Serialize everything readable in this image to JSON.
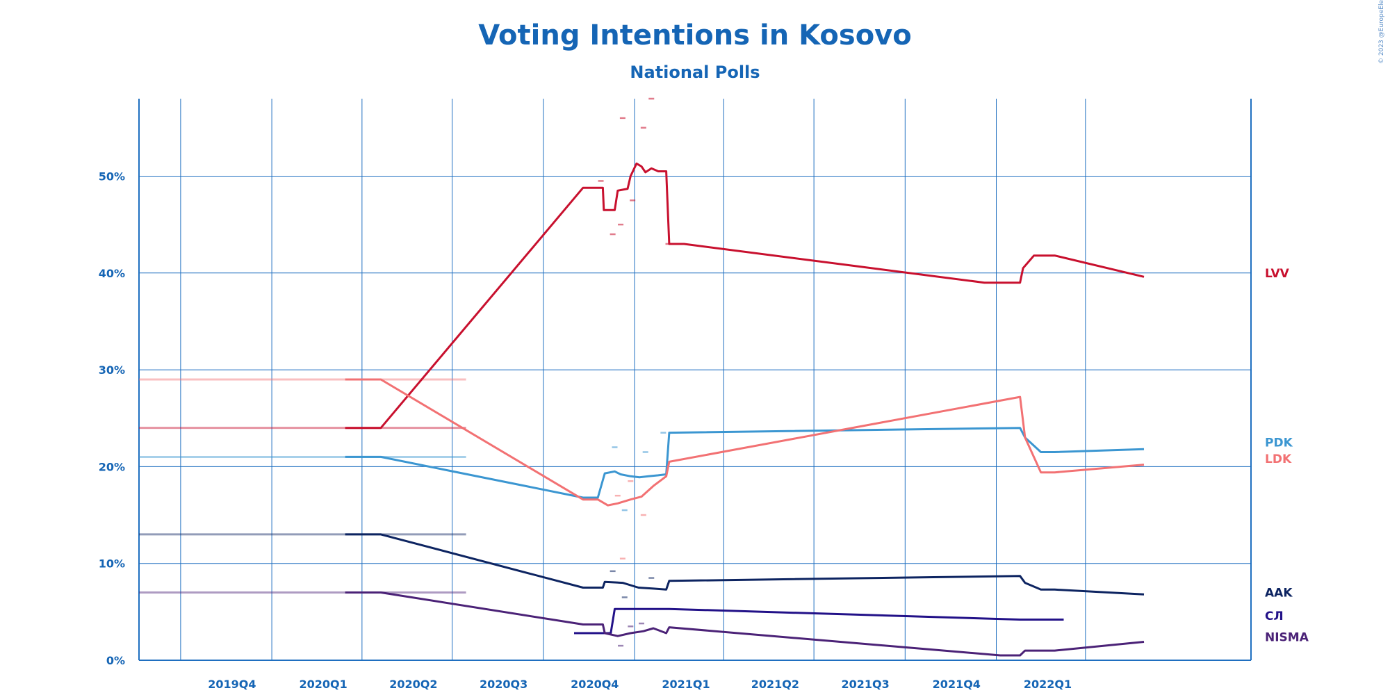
{
  "chart_data": {
    "type": "line",
    "title": "Voting Intentions in Kosovo",
    "subtitle": "National Polls",
    "credit": "© 2023 @EuropeElects",
    "ylim": [
      0,
      58
    ],
    "yticks": [
      0,
      10,
      20,
      30,
      40,
      50
    ],
    "ytick_labels": [
      "0%",
      "10%",
      "20%",
      "30%",
      "40%",
      "50%"
    ],
    "x_domain": [
      "2019-08-20",
      "2022-09-15"
    ],
    "x_tick_labels": [
      {
        "label": "2019Q4",
        "date": "2019-10-01"
      },
      {
        "label": "2020Q1",
        "date": "2020-01-01"
      },
      {
        "label": "2020Q2",
        "date": "2020-04-01"
      },
      {
        "label": "2020Q3",
        "date": "2020-07-01"
      },
      {
        "label": "2020Q4",
        "date": "2020-10-01"
      },
      {
        "label": "2021Q1",
        "date": "2021-01-01"
      },
      {
        "label": "2021Q2",
        "date": "2021-04-01"
      },
      {
        "label": "2021Q3",
        "date": "2021-07-01"
      },
      {
        "label": "2021Q4",
        "date": "2021-10-01"
      },
      {
        "label": "2022Q1",
        "date": "2022-01-01"
      }
    ],
    "x_gridlines": [
      "2019-08-20",
      "2019-10-01",
      "2020-01-01",
      "2020-04-01",
      "2020-07-01",
      "2020-10-01",
      "2021-01-01",
      "2021-04-01",
      "2021-07-01",
      "2021-10-01",
      "2022-01-01",
      "2022-04-01"
    ],
    "grid": true,
    "legend": "right",
    "election_result_lines_end": "2020-07-15",
    "series": [
      {
        "name": "LVV",
        "color": "#c8102e",
        "previous_result": 24.0,
        "points": [
          [
            "2020-03-15",
            24
          ],
          [
            "2020-04-20",
            24
          ],
          [
            "2020-11-10",
            48.8
          ],
          [
            "2020-11-30",
            48.8
          ],
          [
            "2020-12-01",
            46.5
          ],
          [
            "2020-12-12",
            46.5
          ],
          [
            "2020-12-15",
            48.5
          ],
          [
            "2020-12-25",
            48.7
          ],
          [
            "2020-12-28",
            50.0
          ],
          [
            "2021-01-03",
            51.3
          ],
          [
            "2021-01-08",
            51.0
          ],
          [
            "2021-01-12",
            50.4
          ],
          [
            "2021-01-18",
            50.8
          ],
          [
            "2021-01-25",
            50.5
          ],
          [
            "2021-02-02",
            50.5
          ],
          [
            "2021-02-05",
            43.0
          ],
          [
            "2021-02-20",
            43.0
          ],
          [
            "2021-12-20",
            39.0
          ],
          [
            "2022-01-25",
            39.0
          ],
          [
            "2022-01-28",
            40.5
          ],
          [
            "2022-02-08",
            41.8
          ],
          [
            "2022-03-01",
            41.8
          ],
          [
            "2022-05-30",
            39.6
          ]
        ],
        "label_value": 40.0
      },
      {
        "name": "PDK",
        "color": "#3b96d1",
        "previous_result": 21.0,
        "points": [
          [
            "2020-03-15",
            21
          ],
          [
            "2020-04-20",
            21
          ],
          [
            "2020-11-10",
            16.8
          ],
          [
            "2020-11-25",
            16.8
          ],
          [
            "2020-12-02",
            19.3
          ],
          [
            "2020-12-12",
            19.5
          ],
          [
            "2020-12-18",
            19.2
          ],
          [
            "2020-12-28",
            19.0
          ],
          [
            "2021-01-06",
            18.9
          ],
          [
            "2021-01-15",
            19.0
          ],
          [
            "2021-01-25",
            19.1
          ],
          [
            "2021-02-02",
            19.2
          ],
          [
            "2021-02-05",
            23.5
          ],
          [
            "2022-01-25",
            24.0
          ],
          [
            "2022-01-30",
            23.0
          ],
          [
            "2022-02-15",
            21.5
          ],
          [
            "2022-03-01",
            21.5
          ],
          [
            "2022-05-30",
            21.8
          ]
        ],
        "label_value": 22.5
      },
      {
        "name": "LDK",
        "color": "#f27173",
        "previous_result": 29.0,
        "points": [
          [
            "2020-03-15",
            29
          ],
          [
            "2020-04-20",
            29
          ],
          [
            "2020-11-10",
            16.6
          ],
          [
            "2020-11-25",
            16.6
          ],
          [
            "2020-12-05",
            16.0
          ],
          [
            "2020-12-15",
            16.2
          ],
          [
            "2020-12-28",
            16.6
          ],
          [
            "2021-01-08",
            16.9
          ],
          [
            "2021-01-20",
            18.0
          ],
          [
            "2021-02-02",
            19.0
          ],
          [
            "2021-02-05",
            20.5
          ],
          [
            "2022-01-25",
            27.2
          ],
          [
            "2022-01-30",
            23.0
          ],
          [
            "2022-02-15",
            19.4
          ],
          [
            "2022-03-01",
            19.4
          ],
          [
            "2022-05-30",
            20.2
          ]
        ],
        "label_value": 20.8
      },
      {
        "name": "AAK",
        "color": "#0d2461",
        "previous_result": 13.0,
        "points": [
          [
            "2020-03-15",
            13
          ],
          [
            "2020-04-20",
            13
          ],
          [
            "2020-11-10",
            7.5
          ],
          [
            "2020-11-30",
            7.5
          ],
          [
            "2020-12-02",
            8.1
          ],
          [
            "2020-12-20",
            8.0
          ],
          [
            "2021-01-05",
            7.5
          ],
          [
            "2021-01-20",
            7.4
          ],
          [
            "2021-02-02",
            7.3
          ],
          [
            "2021-02-05",
            8.2
          ],
          [
            "2022-01-25",
            8.7
          ],
          [
            "2022-01-30",
            8.0
          ],
          [
            "2022-02-15",
            7.3
          ],
          [
            "2022-03-01",
            7.3
          ],
          [
            "2022-05-30",
            6.8
          ]
        ],
        "label_value": 7.0
      },
      {
        "name": "СЛ",
        "color": "#221188",
        "previous_result": null,
        "points": [
          [
            "2020-11-01",
            2.8
          ],
          [
            "2020-12-08",
            2.8
          ],
          [
            "2020-12-12",
            5.3
          ],
          [
            "2021-02-05",
            5.3
          ],
          [
            "2022-01-25",
            4.2
          ],
          [
            "2022-03-10",
            4.2
          ]
        ],
        "label_value": 4.6
      },
      {
        "name": "NISMA",
        "color": "#4b2277",
        "previous_result": 7.0,
        "points": [
          [
            "2020-03-15",
            7
          ],
          [
            "2020-04-20",
            7
          ],
          [
            "2020-11-10",
            3.7
          ],
          [
            "2020-11-30",
            3.7
          ],
          [
            "2020-12-02",
            2.8
          ],
          [
            "2020-12-15",
            2.5
          ],
          [
            "2020-12-28",
            2.8
          ],
          [
            "2021-01-10",
            3.0
          ],
          [
            "2021-01-20",
            3.3
          ],
          [
            "2021-02-02",
            2.8
          ],
          [
            "2021-02-05",
            3.4
          ],
          [
            "2022-01-05",
            0.5
          ],
          [
            "2022-01-25",
            0.5
          ],
          [
            "2022-01-30",
            1.0
          ],
          [
            "2022-03-01",
            1.0
          ],
          [
            "2022-05-30",
            1.9
          ]
        ],
        "label_value": 2.4
      }
    ],
    "individual_polls": [
      {
        "party": "LVV",
        "points": [
          [
            "2020-11-28",
            49.5
          ],
          [
            "2020-12-10",
            44.0
          ],
          [
            "2020-12-18",
            45.0
          ],
          [
            "2020-12-20",
            56.0
          ],
          [
            "2020-12-30",
            47.5
          ],
          [
            "2021-01-10",
            55.0
          ],
          [
            "2021-01-18",
            58.0
          ],
          [
            "2021-02-04",
            43.0
          ]
        ]
      },
      {
        "party": "LDK",
        "points": [
          [
            "2020-12-15",
            17.0
          ],
          [
            "2020-12-20",
            10.5
          ],
          [
            "2021-01-10",
            15.0
          ],
          [
            "2020-12-28",
            18.5
          ]
        ]
      },
      {
        "party": "PDK",
        "points": [
          [
            "2020-12-12",
            22.0
          ],
          [
            "2020-12-22",
            15.5
          ],
          [
            "2021-01-12",
            21.5
          ],
          [
            "2021-01-30",
            23.5
          ]
        ]
      },
      {
        "party": "AAK",
        "points": [
          [
            "2020-12-10",
            9.2
          ],
          [
            "2020-12-22",
            6.5
          ],
          [
            "2021-01-18",
            8.5
          ]
        ]
      },
      {
        "party": "NISMA",
        "points": [
          [
            "2020-12-18",
            1.5
          ],
          [
            "2021-01-08",
            3.8
          ],
          [
            "2020-12-28",
            3.5
          ]
        ]
      }
    ]
  }
}
